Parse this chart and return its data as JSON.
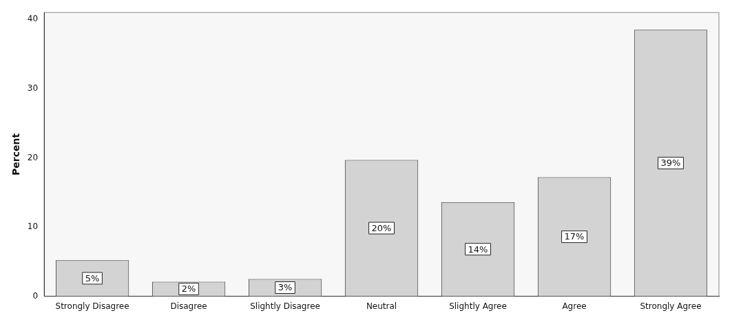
{
  "chart_data": {
    "type": "bar",
    "ylabel": "Percent",
    "categories": [
      "Strongly Disagree",
      "Disagree",
      "Slightly Disagree",
      "Neutral",
      "Slightly Agree",
      "Agree",
      "Strongly Agree"
    ],
    "values": [
      5.2,
      2.1,
      2.5,
      19.7,
      13.6,
      17.2,
      38.5
    ],
    "value_labels": [
      "5%",
      "2%",
      "3%",
      "20%",
      "14%",
      "17%",
      "39%"
    ],
    "color": "#d3d3d3",
    "ylim": [
      0,
      41
    ],
    "yticks": [
      0,
      10,
      20,
      30,
      40
    ],
    "grid": false,
    "legend": false
  }
}
